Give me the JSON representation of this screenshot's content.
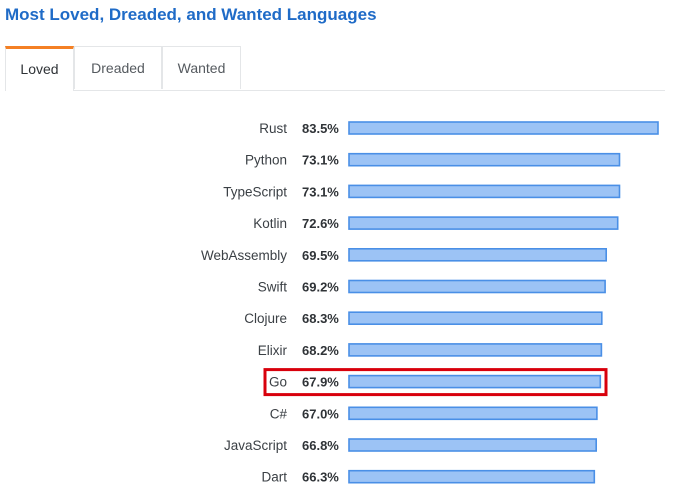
{
  "page": {
    "title": "Most Loved, Dreaded, and Wanted Languages"
  },
  "tabs": [
    {
      "label": "Loved",
      "active": true
    },
    {
      "label": "Dreaded",
      "active": false
    },
    {
      "label": "Wanted",
      "active": false
    }
  ],
  "colors": {
    "bar_fill": "#9cc3f5",
    "bar_stroke": "#4a8fe6",
    "highlight": "#d8000c",
    "title": "#1f6bc7",
    "tab_accent": "#f48024"
  },
  "chart_data": {
    "type": "bar",
    "orientation": "horizontal",
    "title": "",
    "xlabel": "",
    "ylabel": "",
    "xlim": [
      0,
      83.5
    ],
    "grid": false,
    "highlighted_category": "Go",
    "categories": [
      "Rust",
      "Python",
      "TypeScript",
      "Kotlin",
      "WebAssembly",
      "Swift",
      "Clojure",
      "Elixir",
      "Go",
      "C#",
      "JavaScript",
      "Dart"
    ],
    "values": [
      83.5,
      73.1,
      73.1,
      72.6,
      69.5,
      69.2,
      68.3,
      68.2,
      67.9,
      67.0,
      66.8,
      66.3
    ],
    "value_labels": [
      "83.5%",
      "73.1%",
      "73.1%",
      "72.6%",
      "69.5%",
      "69.2%",
      "68.3%",
      "68.2%",
      "67.9%",
      "67.0%",
      "66.8%",
      "66.3%"
    ]
  }
}
